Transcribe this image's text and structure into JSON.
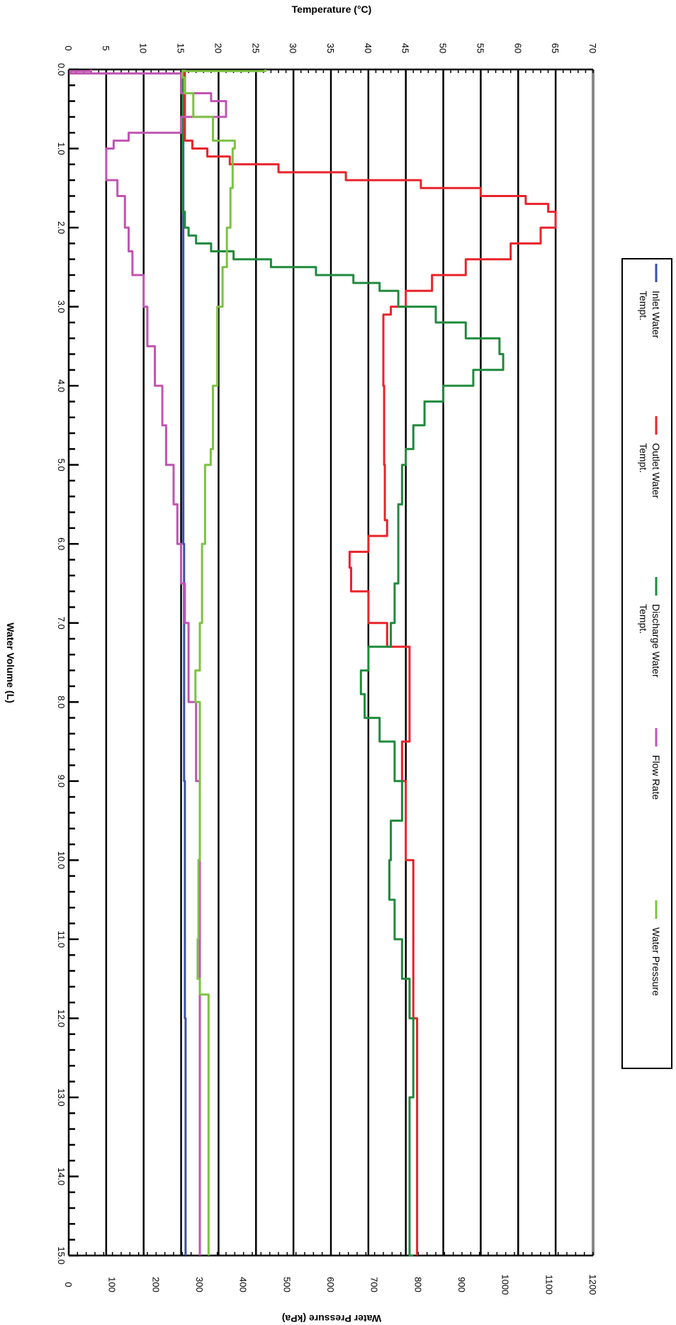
{
  "chart_data": {
    "type": "line",
    "orientation": "rotated-90-clockwise",
    "x_axis": {
      "label": "Water Volume (L)",
      "range": [
        0.0,
        15.0
      ],
      "ticks": [
        "0.0",
        "1.0",
        "2.0",
        "3.0",
        "4.0",
        "5.0",
        "6.0",
        "7.0",
        "8.0",
        "9.0",
        "10.0",
        "11.0",
        "12.0",
        "13.0",
        "14.0",
        "15.0"
      ]
    },
    "y_axis_temperature": {
      "label": "Temperature (°C)",
      "range": [
        0,
        70
      ],
      "ticks": [
        "0",
        "5",
        "10",
        "15",
        "20",
        "25",
        "30",
        "35",
        "40",
        "45",
        "50",
        "55",
        "60",
        "65",
        "70"
      ]
    },
    "y_axis_pressure": {
      "label": "Water Pressure (kPa)",
      "range": [
        0,
        1200
      ],
      "ticks": [
        "0",
        "100",
        "200",
        "300",
        "400",
        "500",
        "600",
        "700",
        "800",
        "900",
        "1000",
        "1100",
        "1200"
      ]
    },
    "grid": true,
    "legend_position": "right",
    "series": [
      {
        "name": "Inlet Water Tempt.",
        "color": "#3a4fa8",
        "axis": "temperature",
        "x": [
          0,
          3,
          6,
          9,
          12,
          15
        ],
        "y": [
          15.3,
          15.3,
          15.4,
          15.5,
          15.6,
          15.6
        ]
      },
      {
        "name": "Outlet Water Tempt.",
        "color": "#e8232a",
        "axis": "temperature",
        "x": [
          0,
          0.8,
          0.9,
          1.0,
          1.1,
          1.2,
          1.3,
          1.4,
          1.5,
          1.6,
          1.7,
          1.8,
          2.0,
          2.2,
          2.4,
          2.6,
          2.8,
          3.0,
          3.1,
          3.3,
          3.6,
          4.0,
          5.0,
          5.7,
          5.9,
          6.1,
          6.3,
          6.6,
          7.0,
          7.3,
          8.0,
          8.5,
          9.0,
          10.0,
          11.0,
          12.0,
          13.0,
          14.0,
          15.0
        ],
        "y": [
          15.5,
          15.5,
          16.5,
          18.5,
          21.5,
          28,
          37,
          47,
          55,
          61,
          64,
          65,
          63,
          59,
          53,
          48.5,
          45,
          43,
          42,
          42,
          42,
          42.1,
          42.2,
          42.5,
          40,
          37.5,
          37.7,
          40,
          42.5,
          45.5,
          45.5,
          44.5,
          45,
          46,
          46,
          46.5,
          46.5,
          46.5,
          46.5
        ]
      },
      {
        "name": "Discharge Water Tempt.",
        "color": "#1f8a3c",
        "axis": "temperature",
        "x": [
          0,
          1.0,
          1.8,
          2.0,
          2.1,
          2.2,
          2.3,
          2.4,
          2.5,
          2.6,
          2.7,
          2.8,
          3.0,
          3.2,
          3.4,
          3.6,
          3.8,
          4.0,
          4.2,
          4.5,
          4.8,
          5.0,
          5.5,
          6.0,
          6.5,
          7.0,
          7.3,
          7.6,
          7.9,
          8.2,
          8.5,
          9.0,
          9.5,
          10.0,
          10.5,
          11.0,
          11.5,
          12.0,
          13.0,
          14.0,
          15.0
        ],
        "y": [
          15.2,
          15.2,
          15.5,
          16.0,
          17.0,
          19.0,
          22.0,
          27.0,
          33.0,
          38.0,
          41.5,
          44.0,
          49.0,
          53.0,
          57.5,
          58.0,
          54.0,
          50.0,
          47.5,
          46.0,
          45.0,
          44.5,
          44.0,
          44.0,
          43.5,
          43.0,
          40.0,
          39.0,
          39.5,
          41.5,
          43.5,
          44.5,
          43.0,
          42.8,
          43.5,
          44.5,
          45.5,
          46.0,
          45.5,
          45.5,
          46.0
        ]
      },
      {
        "name": "Flow Rate",
        "color": "#c054b2",
        "axis": "temperature",
        "x": [
          0,
          0.02,
          0.05,
          0.3,
          0.4,
          0.6,
          0.8,
          0.9,
          1.0,
          1.2,
          1.4,
          1.6,
          2.0,
          2.3,
          2.6,
          3.0,
          3.5,
          4.0,
          4.5,
          5.0,
          5.5,
          6.0,
          6.5,
          7.0,
          7.5,
          8.0,
          8.5,
          9.0,
          9.5,
          10.0,
          10.5,
          11.0,
          11.5,
          12.0,
          12.5,
          13.0,
          13.5,
          14.0,
          14.5,
          15.0
        ],
        "y": [
          3,
          0.2,
          15,
          19,
          21,
          15,
          8,
          6,
          5,
          5,
          6.5,
          7.5,
          8,
          8.5,
          10,
          10.5,
          11.5,
          12.5,
          13,
          14,
          14.5,
          15,
          15.5,
          16,
          16,
          17,
          17,
          17.5,
          17.5,
          17.5,
          17.5,
          17.5,
          17.5,
          17.5,
          17.5,
          17.5,
          17.5,
          17.5,
          17.5,
          17.5
        ]
      },
      {
        "name": "Water Pressure",
        "color": "#7cc243",
        "axis": "pressure",
        "x": [
          0,
          0.02,
          0.1,
          0.3,
          0.6,
          0.9,
          1.0,
          1.5,
          2.0,
          2.5,
          3.0,
          4.0,
          4.8,
          5.0,
          6.0,
          7.0,
          7.6,
          8.0,
          9.0,
          10.0,
          11.0,
          11.5,
          11.7,
          12.0,
          13.0,
          14.0,
          15.0
        ],
        "y": [
          450,
          260,
          265,
          285,
          330,
          380,
          375,
          370,
          362,
          352,
          340,
          330,
          325,
          312,
          305,
          300,
          290,
          300,
          300,
          297,
          295,
          300,
          320,
          320,
          320,
          320,
          320
        ]
      }
    ]
  }
}
